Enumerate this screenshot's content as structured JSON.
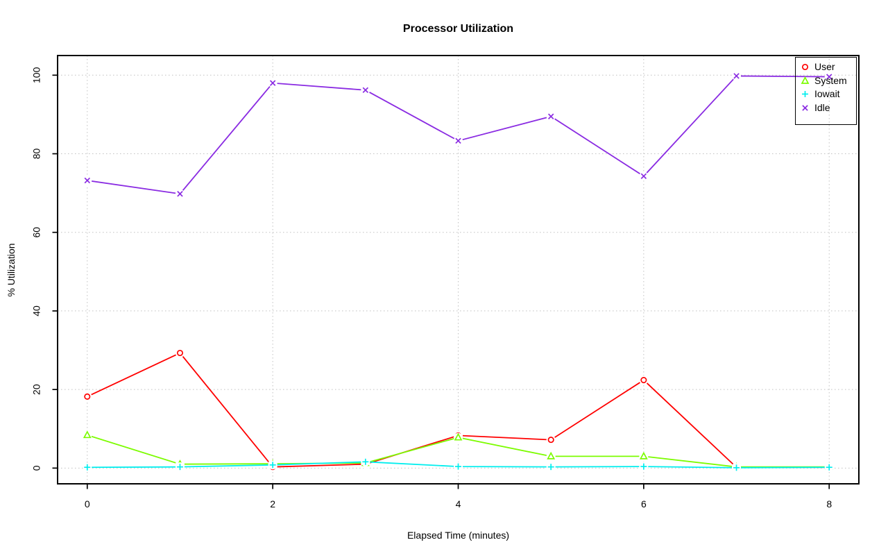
{
  "page": {
    "background": "#ffffff"
  },
  "chart_data": {
    "type": "line",
    "title": "Processor Utilization",
    "xlabel": "Elapsed Time (minutes)",
    "ylabel": "% Utilization",
    "x": [
      0,
      1,
      2,
      3,
      4,
      5,
      6,
      7,
      8
    ],
    "xticks": [
      0,
      2,
      4,
      6,
      8
    ],
    "yticks": [
      0,
      20,
      40,
      60,
      80,
      100
    ],
    "xlim": [
      -0.32,
      8.32
    ],
    "ylim": [
      -4,
      105
    ],
    "grid": true,
    "grid_style": "dotted",
    "grid_color": "#c0c0c0",
    "legend": {
      "position": "top-right",
      "border": true,
      "background": "transparent"
    },
    "series": [
      {
        "name": "User",
        "color": "#ff0000",
        "marker": "circle",
        "values": [
          18.2,
          29.3,
          0.3,
          1.0,
          8.3,
          7.2,
          22.4,
          0.2,
          0.2
        ]
      },
      {
        "name": "System",
        "color": "#7cfc00",
        "marker": "triangle",
        "values": [
          8.4,
          1.0,
          1.1,
          1.3,
          7.8,
          3.0,
          3.0,
          0.3,
          0.3
        ]
      },
      {
        "name": "Iowait",
        "color": "#00eeee",
        "marker": "plus",
        "values": [
          0.2,
          0.3,
          0.8,
          1.6,
          0.4,
          0.3,
          0.4,
          0.1,
          0.2
        ]
      },
      {
        "name": "Idle",
        "color": "#8a2be2",
        "marker": "x",
        "values": [
          73.2,
          69.8,
          98.0,
          96.2,
          83.3,
          89.5,
          74.3,
          99.8,
          99.6
        ]
      }
    ]
  }
}
